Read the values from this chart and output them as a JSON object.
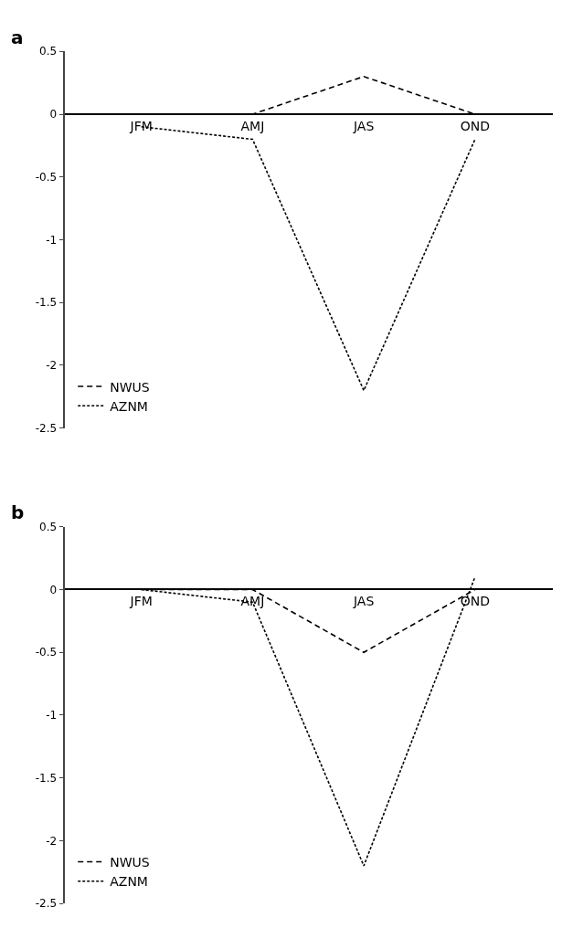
{
  "chart_data": [
    {
      "type": "line",
      "title": "a",
      "categories": [
        "JFM",
        "AMJ",
        "JAS",
        "OND"
      ],
      "ylim": [
        -2.5,
        0.5
      ],
      "yticks": [
        -2.5,
        -2,
        -1.5,
        -1,
        -0.5,
        0,
        0.5
      ],
      "legend": "bottom left",
      "marker": "none",
      "series": [
        {
          "name": "NWUS",
          "color": "#000000",
          "line_style": "dashed",
          "values": [
            0,
            0,
            0.3,
            0
          ]
        },
        {
          "name": "AZNM",
          "color": "#000000",
          "line_style": "dotted",
          "values": [
            -0.1,
            -0.2,
            -2.2,
            -0.2
          ]
        }
      ]
    },
    {
      "type": "line",
      "title": "b",
      "categories": [
        "JFM",
        "AMJ",
        "JAS",
        "OND"
      ],
      "ylim": [
        -2.5,
        0.5
      ],
      "yticks": [
        -2.5,
        -2,
        -1.5,
        -1,
        -0.5,
        0,
        0.5
      ],
      "legend": "bottom left",
      "marker": "none",
      "series": [
        {
          "name": "NWUS",
          "color": "#000000",
          "line_style": "dashed",
          "values": [
            0,
            0,
            -0.5,
            0
          ]
        },
        {
          "name": "AZNM",
          "color": "#000000",
          "line_style": "dotted",
          "values": [
            0,
            -0.1,
            -2.2,
            0.1
          ]
        }
      ]
    }
  ]
}
